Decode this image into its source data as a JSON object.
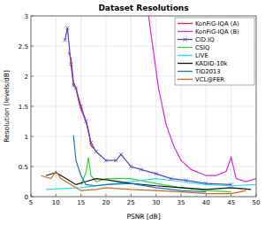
{
  "chart_data": {
    "type": "line",
    "title": "Dataset Resolutions",
    "x_label": "PSNR [dB]",
    "y_label": "Resolution [levels/dB]",
    "xlim": [
      5,
      50
    ],
    "xticks": [
      5,
      10,
      15,
      20,
      25,
      30,
      35,
      40,
      45,
      50
    ],
    "ylim": [
      0,
      3
    ],
    "yticks": [
      0,
      0.5,
      1,
      1.5,
      2,
      2.5,
      3
    ],
    "grid": true,
    "legend": "top-right",
    "series": [
      {
        "name": "KonFiG-IQA (A)",
        "color": "#e8202a",
        "line_style": "solid",
        "x": [
          12.5,
          13,
          13.5,
          14,
          14.5,
          15,
          16,
          16.5,
          17,
          17.5
        ],
        "values": [
          2.4,
          2.3,
          1.9,
          1.8,
          1.6,
          1.45,
          1.25,
          1.1,
          0.85,
          0.8
        ]
      },
      {
        "name": "KonFiG-IQA (B)",
        "color": "#e020e0",
        "line_style": "solid",
        "x": [
          28.5,
          29.5,
          30.5,
          32,
          33.5,
          35,
          37,
          40,
          42,
          44,
          45,
          46,
          48,
          50
        ],
        "values": [
          3,
          2.4,
          1.8,
          1.2,
          0.85,
          0.6,
          0.45,
          0.35,
          0.35,
          0.42,
          0.65,
          0.3,
          0.25,
          0.3
        ]
      },
      {
        "name": "CID:IQ",
        "color": "#5b3fd0",
        "line_style": "solid",
        "marker": "x",
        "x": [
          11.8,
          12.3,
          13,
          13.5,
          14,
          15,
          16,
          17,
          18,
          20,
          22,
          23,
          25,
          27,
          30,
          33,
          36,
          40,
          45
        ],
        "values": [
          2.6,
          2.8,
          2.2,
          1.85,
          1.8,
          1.5,
          1.25,
          0.9,
          0.75,
          0.6,
          0.6,
          0.7,
          0.5,
          0.45,
          0.38,
          0.3,
          0.27,
          0.22,
          0.2
        ]
      },
      {
        "name": "CSIQ",
        "color": "#2ed82e",
        "line_style": "solid",
        "x": [
          15,
          16,
          16.5,
          17,
          18,
          20,
          25,
          30,
          35,
          40,
          45
        ],
        "values": [
          0.2,
          0.4,
          0.65,
          0.35,
          0.25,
          0.3,
          0.3,
          0.22,
          0.15,
          0.1,
          0.08
        ]
      },
      {
        "name": "LIVE",
        "color": "#1ee0e8",
        "line_style": "solid",
        "x": [
          8,
          15,
          20,
          25,
          30,
          35,
          40,
          45,
          50
        ],
        "values": [
          0.12,
          0.15,
          0.2,
          0.25,
          0.3,
          0.25,
          0.2,
          0.18,
          0.2
        ]
      },
      {
        "name": "KADID-10k",
        "color": "#111111",
        "line_style": "solid",
        "x": [
          8,
          10,
          12,
          14,
          16,
          18,
          20,
          25,
          30,
          35,
          40,
          45,
          49
        ],
        "values": [
          0.35,
          0.4,
          0.3,
          0.2,
          0.25,
          0.3,
          0.28,
          0.22,
          0.18,
          0.15,
          0.12,
          0.15,
          0.12
        ]
      },
      {
        "name": "TID2013",
        "color": "#1f77c0",
        "line_style": "solid",
        "x": [
          13.5,
          14,
          15,
          16,
          18,
          20,
          25,
          30,
          35,
          40
        ],
        "values": [
          1.02,
          0.6,
          0.35,
          0.2,
          0.18,
          0.2,
          0.22,
          0.15,
          0.1,
          0.08
        ]
      },
      {
        "name": "VCL@FER",
        "color": "#d2691e",
        "line_style": "solid",
        "x": [
          7,
          9,
          10,
          11,
          12,
          15,
          18,
          20,
          25,
          30,
          35,
          40,
          45,
          48
        ],
        "values": [
          0.35,
          0.3,
          0.42,
          0.3,
          0.25,
          0.1,
          0.12,
          0.15,
          0.12,
          0.1,
          0.08,
          0.05,
          0.05,
          0.1
        ]
      }
    ]
  }
}
